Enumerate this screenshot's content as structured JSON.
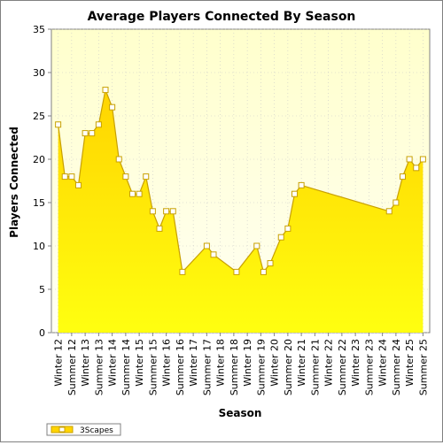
{
  "chart_data": {
    "type": "area",
    "title": "Average Players Connected By Season",
    "xlabel": "Season",
    "ylabel": "Players Connected",
    "ylim": [
      0,
      35
    ],
    "yticks": [
      0,
      5,
      10,
      15,
      20,
      25,
      30,
      35
    ],
    "grid": true,
    "legend_position": "bottom-left",
    "colors": {
      "fill_top": "#ffd400",
      "fill_bottom": "#ffff10",
      "line": "#c8a000",
      "marker_fill": "#ffffff",
      "plot_bg_top": "#ffffcc",
      "plot_bg_bottom": "#fffff4"
    },
    "categories": [
      "Winter 12",
      "Summer 12",
      "Winter 13",
      "Summer 13",
      "Winter 14",
      "Summer 14",
      "Winter 15",
      "Summer 15",
      "Winter 16",
      "Summer 16",
      "Winter 17",
      "Summer 17",
      "Winter 18",
      "Summer 18",
      "Winter 19",
      "Summer 19",
      "Winter 20",
      "Summer 20",
      "Winter 21",
      "Summer 21",
      "Winter 22",
      "Summer 22",
      "Winter 23",
      "Summer 23",
      "Winter 24",
      "Summer 24",
      "Winter 25",
      "Summer 25"
    ],
    "series": [
      {
        "name": "3Scapes",
        "points": [
          [
            0.0,
            24
          ],
          [
            0.5,
            18
          ],
          [
            1.0,
            18
          ],
          [
            1.5,
            17
          ],
          [
            2.0,
            23
          ],
          [
            2.5,
            23
          ],
          [
            3.0,
            24
          ],
          [
            3.5,
            28
          ],
          [
            4.0,
            26
          ],
          [
            4.5,
            20
          ],
          [
            5.0,
            18
          ],
          [
            5.5,
            16
          ],
          [
            6.0,
            16
          ],
          [
            6.5,
            18
          ],
          [
            7.0,
            14
          ],
          [
            7.5,
            12
          ],
          [
            8.0,
            14
          ],
          [
            8.5,
            14
          ],
          [
            9.2,
            7
          ],
          [
            11.0,
            10
          ],
          [
            11.5,
            9
          ],
          [
            13.2,
            7
          ],
          [
            14.7,
            10
          ],
          [
            15.2,
            7
          ],
          [
            15.7,
            8
          ],
          [
            16.5,
            11
          ],
          [
            17.0,
            12
          ],
          [
            17.5,
            16
          ],
          [
            18.0,
            17
          ],
          [
            24.5,
            14
          ],
          [
            25.0,
            15
          ],
          [
            25.5,
            18
          ],
          [
            26.0,
            20
          ],
          [
            26.5,
            19
          ],
          [
            27.0,
            20
          ]
        ]
      }
    ]
  }
}
